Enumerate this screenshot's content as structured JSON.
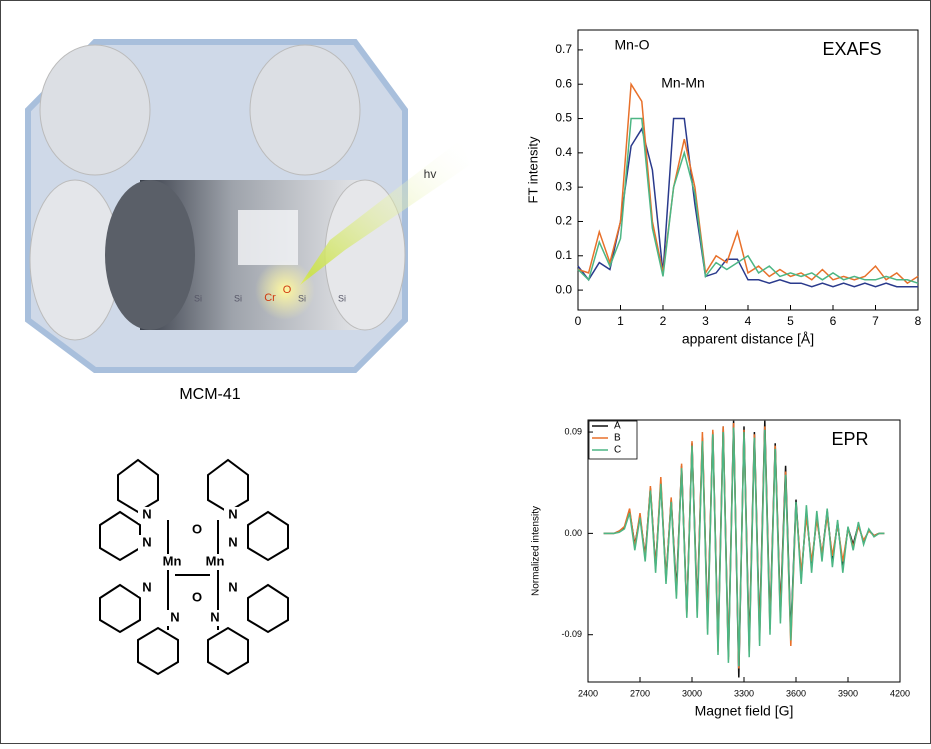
{
  "figure": {
    "illustration_labels": [
      "hv",
      "Cr",
      "O",
      "Si",
      "Si",
      "Si",
      "Si"
    ],
    "caption": "MCM-41",
    "structure_atoms": [
      "Mn",
      "Mn",
      "O",
      "O",
      "N",
      "N",
      "N",
      "N",
      "N",
      "N",
      "N",
      "N"
    ]
  },
  "chart_data": [
    {
      "type": "line",
      "ylabel": "FT intensity",
      "xlabel": "apparent distance [Å]",
      "annotations": [
        "Mn-O",
        "Mn-Mn",
        "EXAFS"
      ],
      "xlim": [
        0,
        8
      ],
      "ylim": [
        -0.058,
        0.758
      ],
      "xticks": [
        0,
        1,
        2,
        3,
        4,
        5,
        6,
        7,
        8
      ],
      "yticks": [
        {
          "value": 0,
          "label": "0.0"
        },
        0.1,
        0.2,
        0.3,
        0.4,
        0.5,
        0.6,
        0.7
      ],
      "x": [
        0,
        0.25,
        0.5,
        0.75,
        1,
        1.25,
        1.5,
        1.75,
        2,
        2.25,
        2.5,
        2.75,
        3,
        3.25,
        3.5,
        3.75,
        4,
        4.25,
        4.5,
        4.75,
        5,
        5.25,
        5.5,
        5.75,
        6,
        6.25,
        6.5,
        6.75,
        7,
        7.25,
        7.5,
        7.75,
        8
      ],
      "series": [
        {
          "color": "#2a3a8c",
          "values": [
            0.07,
            0.03,
            0.08,
            0.06,
            0.2,
            0.42,
            0.47,
            0.35,
            0.05,
            0.5,
            0.5,
            0.25,
            0.04,
            0.05,
            0.09,
            0.09,
            0.03,
            0.03,
            0.02,
            0.03,
            0.02,
            0.02,
            0.01,
            0.02,
            0.01,
            0.02,
            0.01,
            0.02,
            0.01,
            0.02,
            0.01,
            0.01,
            0.01
          ]
        },
        {
          "color": "#e8702a",
          "values": [
            0.06,
            0.05,
            0.17,
            0.08,
            0.2,
            0.6,
            0.55,
            0.2,
            0.05,
            0.3,
            0.44,
            0.3,
            0.05,
            0.1,
            0.08,
            0.17,
            0.05,
            0.07,
            0.04,
            0.06,
            0.04,
            0.05,
            0.03,
            0.06,
            0.03,
            0.04,
            0.03,
            0.04,
            0.07,
            0.03,
            0.05,
            0.02,
            0.04
          ]
        },
        {
          "color": "#4cb684",
          "values": [
            0.06,
            0.03,
            0.14,
            0.07,
            0.15,
            0.5,
            0.5,
            0.18,
            0.04,
            0.3,
            0.4,
            0.28,
            0.04,
            0.08,
            0.06,
            0.08,
            0.1,
            0.05,
            0.07,
            0.04,
            0.05,
            0.04,
            0.05,
            0.03,
            0.05,
            0.03,
            0.04,
            0.03,
            0.03,
            0.04,
            0.03,
            0.03,
            0.02
          ]
        }
      ]
    },
    {
      "type": "line",
      "ylabel": "Normalized intensity",
      "xlabel": "Magnet field [G]",
      "annotations": [
        "EPR"
      ],
      "legend": "upper left",
      "xlim": [
        2400,
        4200
      ],
      "ylim": [
        -0.132,
        0.1007
      ],
      "xticks": [
        2400,
        2700,
        3000,
        3300,
        3600,
        3900,
        4200
      ],
      "yticks": [
        -0.09,
        {
          "value": 0,
          "label": "0.00"
        },
        0.09
      ],
      "x": [
        2490,
        2520,
        2550,
        2580,
        2610,
        2640,
        2670,
        2700,
        2730,
        2760,
        2790,
        2820,
        2850,
        2880,
        2910,
        2940,
        2970,
        3000,
        3030,
        3060,
        3090,
        3120,
        3150,
        3180,
        3210,
        3240,
        3270,
        3300,
        3330,
        3360,
        3390,
        3420,
        3450,
        3480,
        3510,
        3540,
        3570,
        3600,
        3630,
        3660,
        3690,
        3720,
        3750,
        3780,
        3810,
        3840,
        3870,
        3900,
        3930,
        3960,
        3990,
        4020,
        4050,
        4080,
        4110
      ],
      "series": [
        {
          "name": "A",
          "color": "#111111",
          "values": [
            0,
            0,
            0,
            0.002,
            0.005,
            0.02,
            -0.01,
            0.015,
            -0.02,
            0.04,
            -0.03,
            0.045,
            -0.04,
            0.03,
            -0.05,
            0.06,
            -0.07,
            0.08,
            -0.065,
            0.085,
            -0.08,
            0.09,
            -0.1,
            0.095,
            -0.11,
            0.1,
            -0.128,
            0.095,
            -0.1,
            0.09,
            -0.09,
            0.1,
            -0.08,
            0.08,
            -0.07,
            0.06,
            -0.09,
            0.03,
            -0.04,
            0.02,
            -0.03,
            0.015,
            -0.02,
            0.02,
            -0.025,
            0.01,
            -0.03,
            0.005,
            -0.01,
            0.008,
            -0.008,
            0.003,
            -0.002,
            0,
            0
          ]
        },
        {
          "name": "B",
          "color": "#e8702a",
          "values": [
            0,
            0,
            0,
            0.002,
            0.006,
            0.022,
            -0.012,
            0.018,
            -0.022,
            0.042,
            -0.032,
            0.05,
            -0.042,
            0.032,
            -0.055,
            0.062,
            -0.072,
            0.082,
            -0.07,
            0.09,
            -0.085,
            0.092,
            -0.105,
            0.095,
            -0.112,
            0.098,
            -0.12,
            0.092,
            -0.105,
            0.088,
            -0.095,
            0.095,
            -0.085,
            0.078,
            -0.075,
            0.055,
            -0.1,
            0.025,
            -0.035,
            0.015,
            -0.025,
            0.012,
            -0.018,
            0.015,
            -0.02,
            0.008,
            -0.025,
            0.004,
            -0.012,
            0.006,
            -0.006,
            0.002,
            -0.002,
            0,
            0
          ]
        },
        {
          "name": "C",
          "color": "#4cb684",
          "values": [
            0,
            0,
            0,
            0.001,
            0.004,
            0.018,
            -0.015,
            0.014,
            -0.025,
            0.038,
            -0.035,
            0.044,
            -0.045,
            0.028,
            -0.058,
            0.058,
            -0.075,
            0.078,
            -0.075,
            0.082,
            -0.09,
            0.088,
            -0.108,
            0.09,
            -0.115,
            0.094,
            -0.118,
            0.09,
            -0.11,
            0.085,
            -0.1,
            0.092,
            -0.09,
            0.075,
            -0.08,
            0.052,
            -0.095,
            0.028,
            -0.045,
            0.025,
            -0.035,
            0.02,
            -0.025,
            0.022,
            -0.03,
            0.012,
            -0.035,
            0.006,
            -0.015,
            0.01,
            -0.01,
            0.004,
            -0.003,
            0,
            0
          ]
        }
      ]
    }
  ]
}
